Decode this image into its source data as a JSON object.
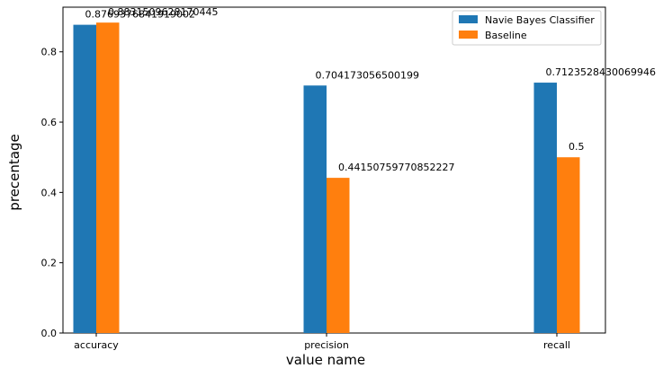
{
  "chart_data": {
    "type": "bar",
    "title": "",
    "xlabel": "value name",
    "ylabel": "precentage",
    "categories": [
      "accuracy",
      "precision",
      "recall"
    ],
    "series": [
      {
        "name": "Navie Bayes Classifier",
        "color": "#1f77b4",
        "values": [
          0.8769376841919002,
          0.704173056500199,
          0.7123528430069946
        ],
        "labels": [
          "0.8769376841919002",
          "0.704173056500199",
          "0.7123528430069946"
        ]
      },
      {
        "name": "Baseline",
        "color": "#ff7f0e",
        "values": [
          0.8831509628170445,
          0.44150759770852227,
          0.5
        ],
        "labels": [
          "0.8831509628170445",
          "0.44150759770852227",
          "0.5"
        ]
      }
    ],
    "yticks": [
      "0.0",
      "0.2",
      "0.4",
      "0.6",
      "0.8"
    ],
    "ylim": [
      0,
      0.927
    ],
    "grid": false,
    "legend": "top-right"
  }
}
